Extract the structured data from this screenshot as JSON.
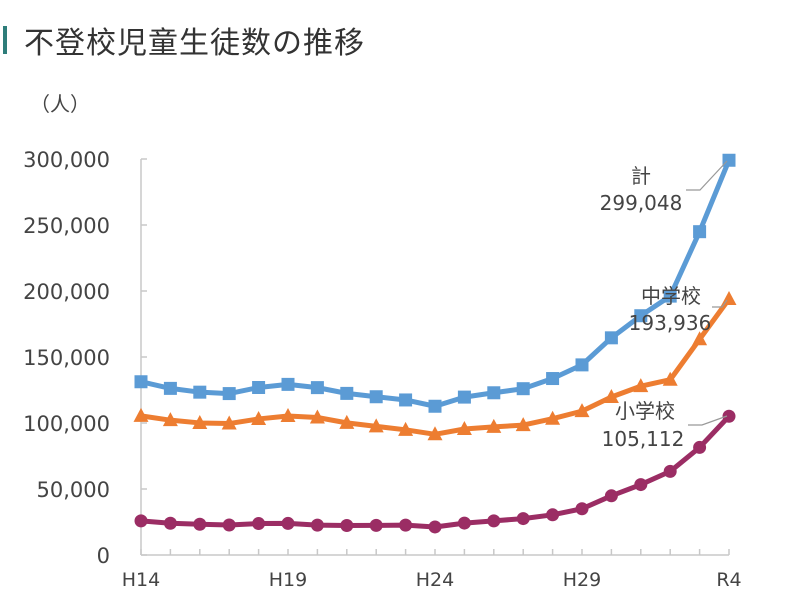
{
  "chart_data": {
    "type": "line",
    "title": "不登校児童生徒数の推移",
    "ylabel": "（人）",
    "xlabel": "",
    "ylim": [
      0,
      300000
    ],
    "yticks": [
      "0",
      "50,000",
      "100,000",
      "150,000",
      "200,000",
      "250,000",
      "300,000"
    ],
    "ytick_values": [
      0,
      50000,
      100000,
      150000,
      200000,
      250000,
      300000
    ],
    "categories": [
      "H14",
      "H15",
      "H16",
      "H17",
      "H18",
      "H19",
      "H20",
      "H21",
      "H22",
      "H23",
      "H24",
      "H25",
      "H26",
      "H27",
      "H28",
      "H29",
      "H30",
      "R1",
      "R2",
      "R3",
      "R4"
    ],
    "xtick_labels": {
      "0": "H14",
      "5": "H19",
      "10": "H24",
      "15": "H29",
      "20": "R4"
    },
    "grid": false,
    "series": [
      {
        "name": "計",
        "end_label": "299,048",
        "color": "#5b9bd5",
        "marker": "square",
        "values": [
          131252,
          126226,
          123358,
          122287,
          126894,
          129255,
          126805,
          122432,
          119891,
          117458,
          112689,
          119617,
          122897,
          125991,
          133683,
          144031,
          164528,
          181272,
          196127,
          244940,
          299048
        ]
      },
      {
        "name": "中学校",
        "end_label": "193,936",
        "color": "#ed7d31",
        "marker": "triangle",
        "values": [
          105383,
          102149,
          100040,
          99578,
          103069,
          105328,
          104153,
          100105,
          97428,
          94836,
          91446,
          95442,
          97033,
          98408,
          103235,
          108999,
          119687,
          127922,
          132777,
          163442,
          193936
        ]
      },
      {
        "name": "小学校",
        "end_label": "105,112",
        "color": "#9b2d64",
        "marker": "circle",
        "values": [
          25869,
          24077,
          23318,
          22709,
          23825,
          23927,
          22652,
          22327,
          22463,
          22622,
          21243,
          24175,
          25864,
          27583,
          30448,
          35032,
          44841,
          53350,
          63350,
          81498,
          105112
        ]
      }
    ]
  },
  "colors": {
    "title_bar": "#2e7d7a",
    "axis": "#c8c8c8",
    "leader": "#999999"
  }
}
